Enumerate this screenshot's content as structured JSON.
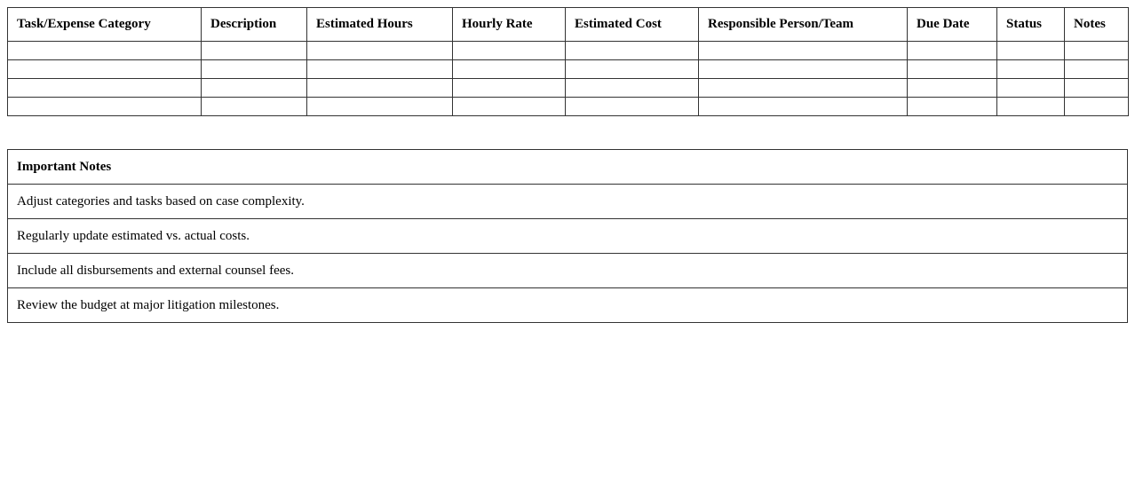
{
  "budget_table": {
    "headers": [
      "Task/Expense Category",
      "Description",
      "Estimated Hours",
      "Hourly Rate",
      "Estimated Cost",
      "Responsible Person/Team",
      "Due Date",
      "Status",
      "Notes"
    ],
    "rows": [
      [
        "",
        "",
        "",
        "",
        "",
        "",
        "",
        "",
        ""
      ],
      [
        "",
        "",
        "",
        "",
        "",
        "",
        "",
        "",
        ""
      ],
      [
        "",
        "",
        "",
        "",
        "",
        "",
        "",
        "",
        ""
      ],
      [
        "",
        "",
        "",
        "",
        "",
        "",
        "",
        "",
        ""
      ]
    ]
  },
  "notes_table": {
    "title": "Important Notes",
    "items": [
      "Adjust categories and tasks based on case complexity.",
      "Regularly update estimated vs. actual costs.",
      "Include all disbursements and external counsel fees.",
      "Review the budget at major litigation milestones."
    ]
  }
}
